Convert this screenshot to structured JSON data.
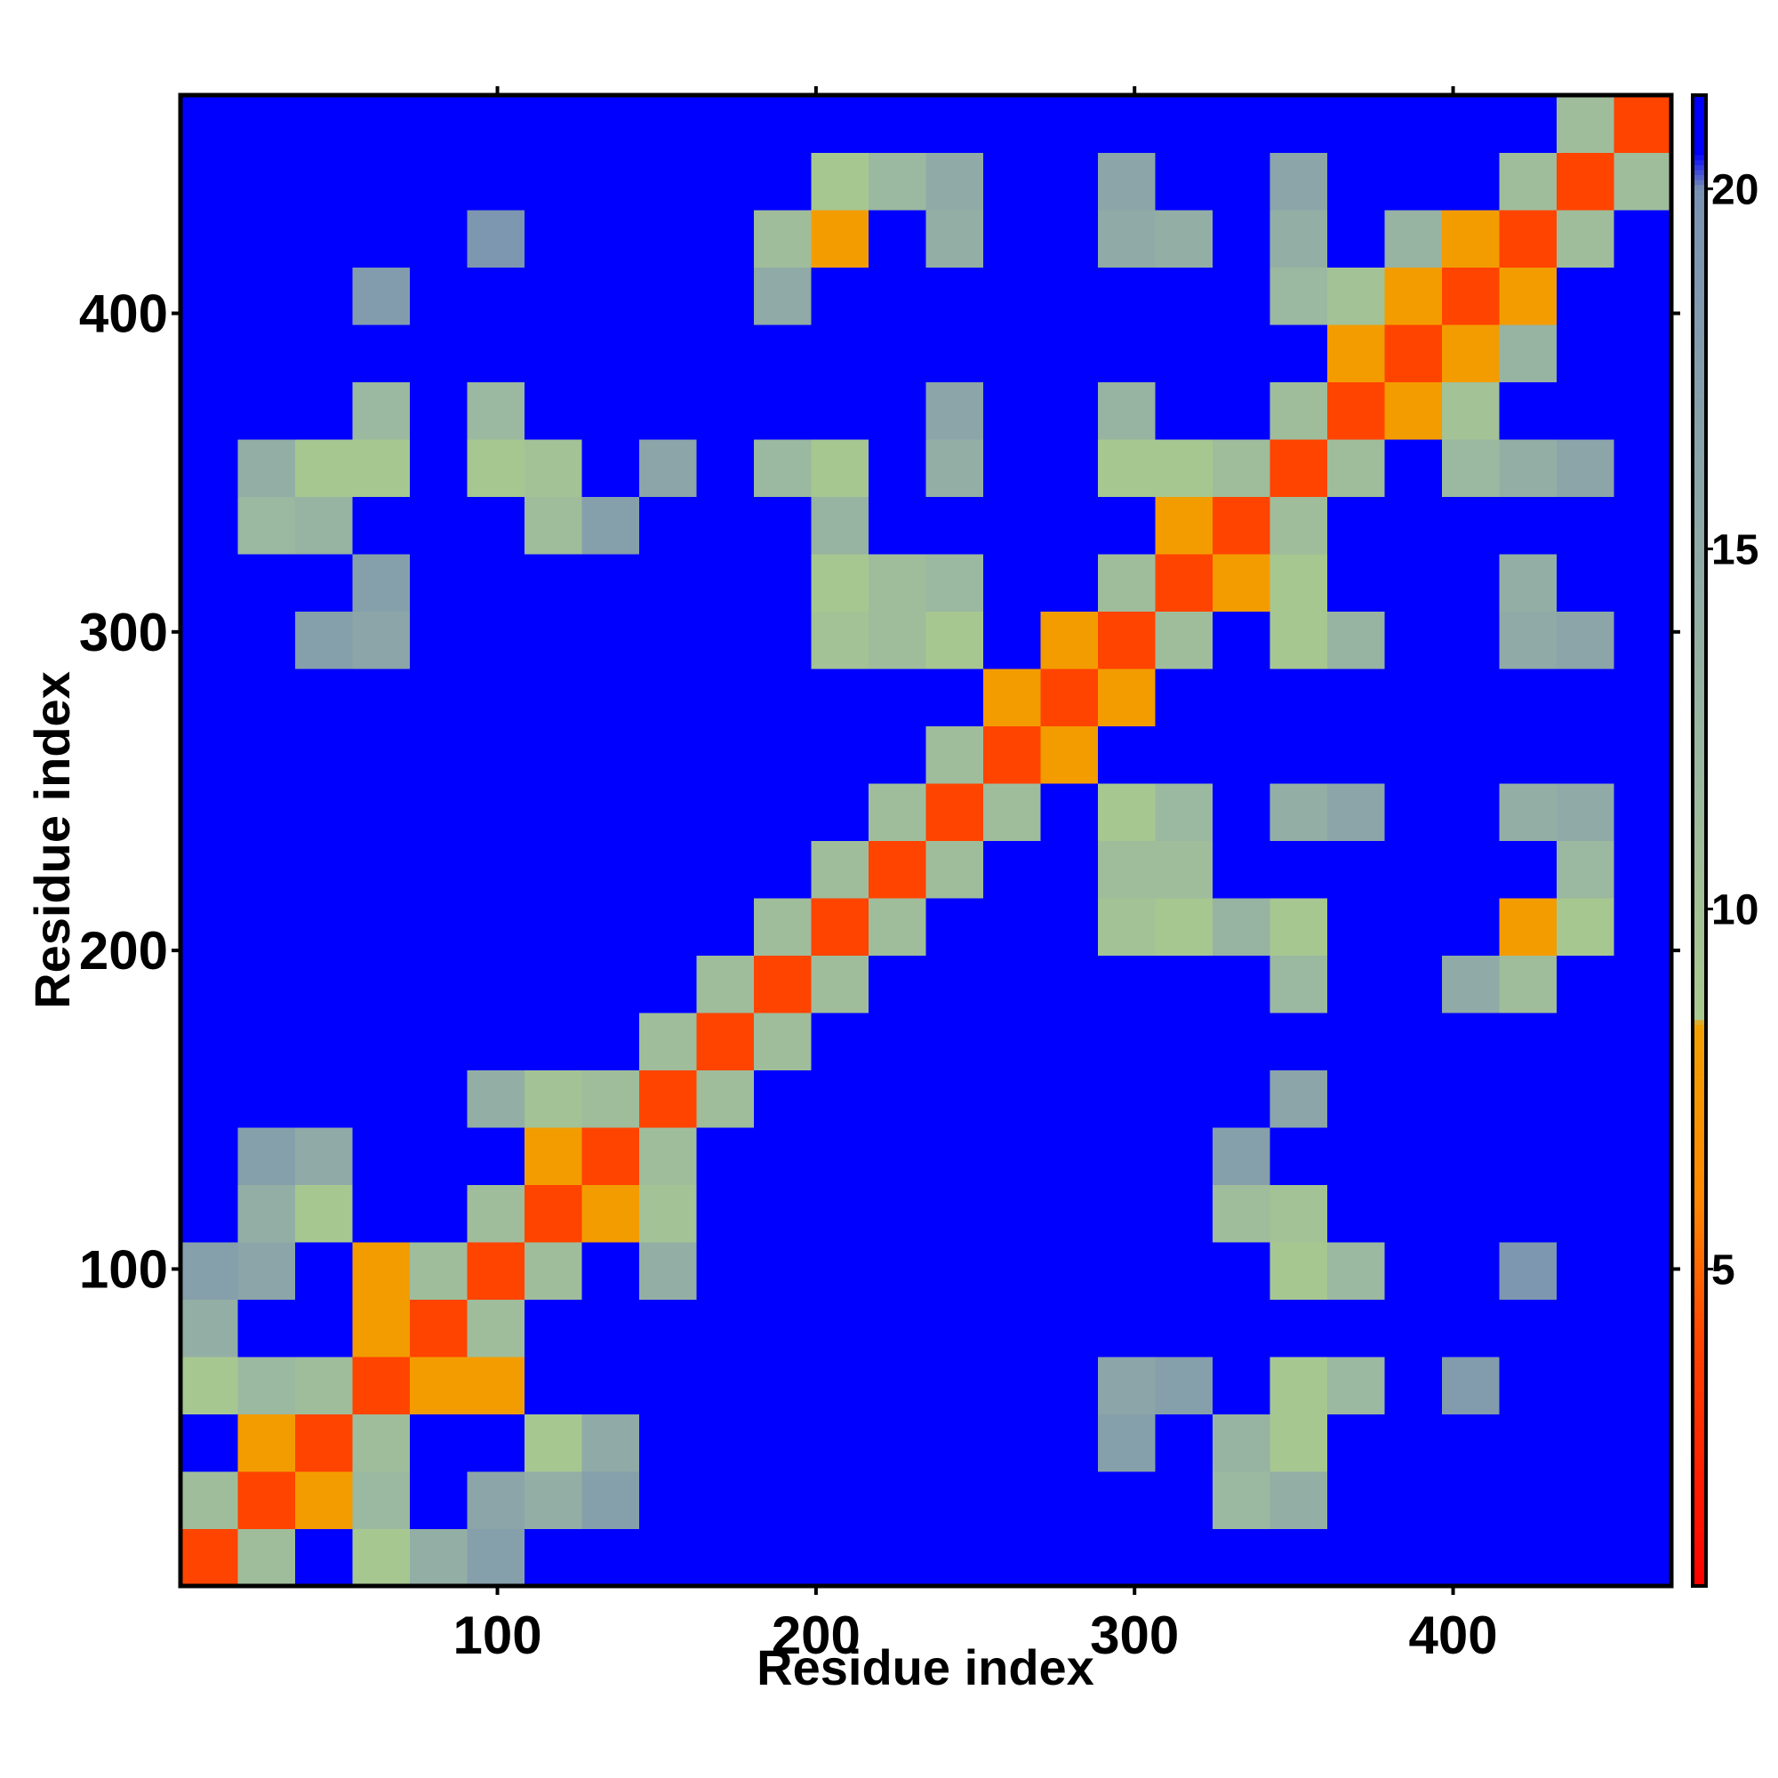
{
  "chart_data": {
    "type": "heatmap",
    "xlabel": "Residue index",
    "ylabel": "Residue index",
    "xlim": [
      0.5,
      468.5
    ],
    "ylim": [
      0.5,
      468.5
    ],
    "xticks": [
      100,
      200,
      300,
      400
    ],
    "yticks": [
      100,
      200,
      300,
      400
    ],
    "xbins": [
      0.5,
      18.5,
      36.5,
      54.5,
      72.5,
      90.5,
      108.5,
      126.5,
      144.5,
      162.5,
      180.5,
      198.5,
      216.5,
      234.5,
      252.5,
      270.5,
      288.5,
      306.5,
      324.5,
      342.5,
      360.5,
      378.5,
      396.5,
      414.5,
      432.5,
      450.5,
      468.5
    ],
    "ybins": [
      0.5,
      18.5,
      36.5,
      54.5,
      72.5,
      90.5,
      108.5,
      126.5,
      144.5,
      162.5,
      180.5,
      198.5,
      216.5,
      234.5,
      252.5,
      270.5,
      288.5,
      306.5,
      324.5,
      342.5,
      360.5,
      378.5,
      396.5,
      414.5,
      432.5,
      450.5,
      468.5
    ],
    "clim": [
      0.6,
      21.3
    ],
    "cticks": [
      5,
      10,
      15,
      20
    ],
    "colorscale": [
      {
        "value": 0.6,
        "color": "#ff0000"
      },
      {
        "value": 4,
        "color": "#ff4400"
      },
      {
        "value": 6,
        "color": "#ff8800"
      },
      {
        "value": 8.4,
        "color": "#f0a000"
      },
      {
        "value": 8.5,
        "color": "#a9c98f"
      },
      {
        "value": 12,
        "color": "#9bb8a0"
      },
      {
        "value": 20,
        "color": "#7a92b2"
      },
      {
        "value": 20.5,
        "color": "#0000ff"
      },
      {
        "value": 21.3,
        "color": "#0000ff"
      }
    ],
    "values": [
      [
        4,
        11,
        21,
        9,
        14,
        17,
        21,
        21,
        21,
        21,
        21,
        21,
        21,
        21,
        21,
        21,
        21,
        21,
        21,
        21,
        21,
        21,
        21,
        21,
        21,
        21
      ],
      [
        11,
        4,
        8,
        12,
        21,
        16,
        14,
        17,
        21,
        21,
        21,
        21,
        21,
        21,
        21,
        21,
        21,
        21,
        12,
        14,
        21,
        21,
        21,
        21,
        21,
        21
      ],
      [
        21,
        8,
        4,
        11,
        21,
        21,
        9,
        15,
        21,
        21,
        21,
        21,
        21,
        21,
        21,
        21,
        17,
        21,
        13,
        9,
        21,
        21,
        21,
        21,
        21,
        21
      ],
      [
        9,
        12,
        11,
        4,
        8,
        8,
        21,
        21,
        21,
        21,
        21,
        21,
        21,
        21,
        21,
        21,
        16,
        17,
        21,
        9,
        12,
        21,
        18,
        21,
        21,
        21
      ],
      [
        14,
        21,
        21,
        8,
        4,
        11,
        21,
        21,
        21,
        21,
        21,
        21,
        21,
        21,
        21,
        21,
        21,
        21,
        21,
        21,
        21,
        21,
        21,
        21,
        21,
        21
      ],
      [
        17,
        16,
        21,
        8,
        11,
        4,
        11,
        21,
        14,
        21,
        21,
        21,
        21,
        21,
        21,
        21,
        21,
        21,
        21,
        9,
        12,
        21,
        21,
        19,
        21,
        21
      ],
      [
        21,
        14,
        9,
        21,
        21,
        11,
        4,
        8,
        10,
        21,
        21,
        21,
        21,
        21,
        21,
        21,
        21,
        21,
        11,
        10,
        21,
        21,
        21,
        21,
        21,
        21
      ],
      [
        21,
        17,
        15,
        21,
        21,
        21,
        8,
        4,
        11,
        21,
        21,
        21,
        21,
        21,
        21,
        21,
        21,
        21,
        17,
        21,
        21,
        21,
        21,
        21,
        21,
        21
      ],
      [
        21,
        21,
        21,
        21,
        21,
        14,
        10,
        11,
        4,
        11,
        21,
        21,
        21,
        21,
        21,
        21,
        21,
        21,
        21,
        16,
        21,
        21,
        21,
        21,
        21,
        21
      ],
      [
        21,
        21,
        21,
        21,
        21,
        21,
        21,
        21,
        11,
        4,
        11,
        21,
        21,
        21,
        21,
        21,
        21,
        21,
        21,
        21,
        21,
        21,
        21,
        21,
        21,
        21
      ],
      [
        21,
        21,
        21,
        21,
        21,
        21,
        21,
        21,
        21,
        11,
        4,
        11,
        21,
        21,
        21,
        21,
        21,
        21,
        21,
        12,
        21,
        21,
        15,
        11,
        21,
        21
      ],
      [
        21,
        21,
        21,
        21,
        21,
        21,
        21,
        21,
        21,
        21,
        11,
        4,
        11,
        21,
        21,
        21,
        10,
        9,
        13,
        9,
        21,
        21,
        21,
        8,
        9,
        21
      ],
      [
        21,
        21,
        21,
        21,
        21,
        21,
        21,
        21,
        21,
        21,
        21,
        11,
        4,
        11,
        21,
        21,
        11,
        11,
        21,
        21,
        21,
        21,
        21,
        21,
        12,
        21
      ],
      [
        21,
        21,
        21,
        21,
        21,
        21,
        21,
        21,
        21,
        21,
        21,
        21,
        11,
        4,
        11,
        21,
        9,
        12,
        21,
        14,
        16,
        21,
        21,
        14,
        15,
        21
      ],
      [
        21,
        21,
        21,
        21,
        21,
        21,
        21,
        21,
        21,
        21,
        21,
        21,
        21,
        11,
        4,
        8,
        21,
        21,
        21,
        21,
        21,
        21,
        21,
        21,
        21,
        21
      ],
      [
        21,
        21,
        21,
        21,
        21,
        21,
        21,
        21,
        21,
        21,
        21,
        21,
        21,
        21,
        8,
        4,
        8,
        21,
        21,
        21,
        21,
        21,
        21,
        21,
        21,
        21
      ],
      [
        21,
        21,
        17,
        16,
        21,
        21,
        21,
        21,
        21,
        21,
        21,
        10,
        11,
        9,
        21,
        8,
        4,
        11,
        21,
        9,
        13,
        21,
        21,
        15,
        16,
        21
      ],
      [
        21,
        21,
        21,
        17,
        21,
        21,
        21,
        21,
        21,
        21,
        21,
        9,
        11,
        12,
        21,
        21,
        11,
        4,
        8,
        9,
        21,
        21,
        21,
        14,
        21,
        21
      ],
      [
        21,
        12,
        13,
        21,
        21,
        21,
        11,
        17,
        21,
        21,
        21,
        13,
        21,
        21,
        21,
        21,
        21,
        8,
        4,
        11,
        21,
        21,
        21,
        21,
        21,
        21
      ],
      [
        21,
        14,
        9,
        9,
        21,
        9,
        10,
        21,
        16,
        21,
        12,
        9,
        21,
        14,
        21,
        21,
        9,
        9,
        11,
        4,
        11,
        21,
        12,
        14,
        16,
        21
      ],
      [
        21,
        21,
        21,
        12,
        21,
        12,
        21,
        21,
        21,
        21,
        21,
        21,
        21,
        16,
        21,
        21,
        13,
        21,
        21,
        11,
        4,
        8,
        10,
        21,
        21,
        21
      ],
      [
        21,
        21,
        21,
        21,
        21,
        21,
        21,
        21,
        21,
        21,
        21,
        21,
        21,
        21,
        21,
        21,
        21,
        21,
        21,
        21,
        8,
        4,
        8,
        13,
        21,
        21
      ],
      [
        21,
        21,
        21,
        18,
        21,
        21,
        21,
        21,
        21,
        21,
        15,
        21,
        21,
        21,
        21,
        21,
        21,
        21,
        21,
        12,
        10,
        8,
        4,
        8,
        21,
        21
      ],
      [
        21,
        21,
        21,
        21,
        21,
        19,
        21,
        21,
        21,
        21,
        11,
        8,
        21,
        14,
        21,
        21,
        15,
        14,
        21,
        14,
        21,
        13,
        8,
        4,
        11,
        21
      ],
      [
        21,
        21,
        21,
        21,
        21,
        21,
        21,
        21,
        21,
        21,
        21,
        9,
        12,
        15,
        21,
        21,
        16,
        21,
        21,
        16,
        21,
        21,
        21,
        11,
        4,
        11
      ],
      [
        21,
        21,
        21,
        21,
        21,
        21,
        21,
        21,
        21,
        21,
        21,
        21,
        21,
        21,
        21,
        21,
        21,
        21,
        21,
        21,
        21,
        21,
        21,
        21,
        11,
        4
      ]
    ]
  }
}
